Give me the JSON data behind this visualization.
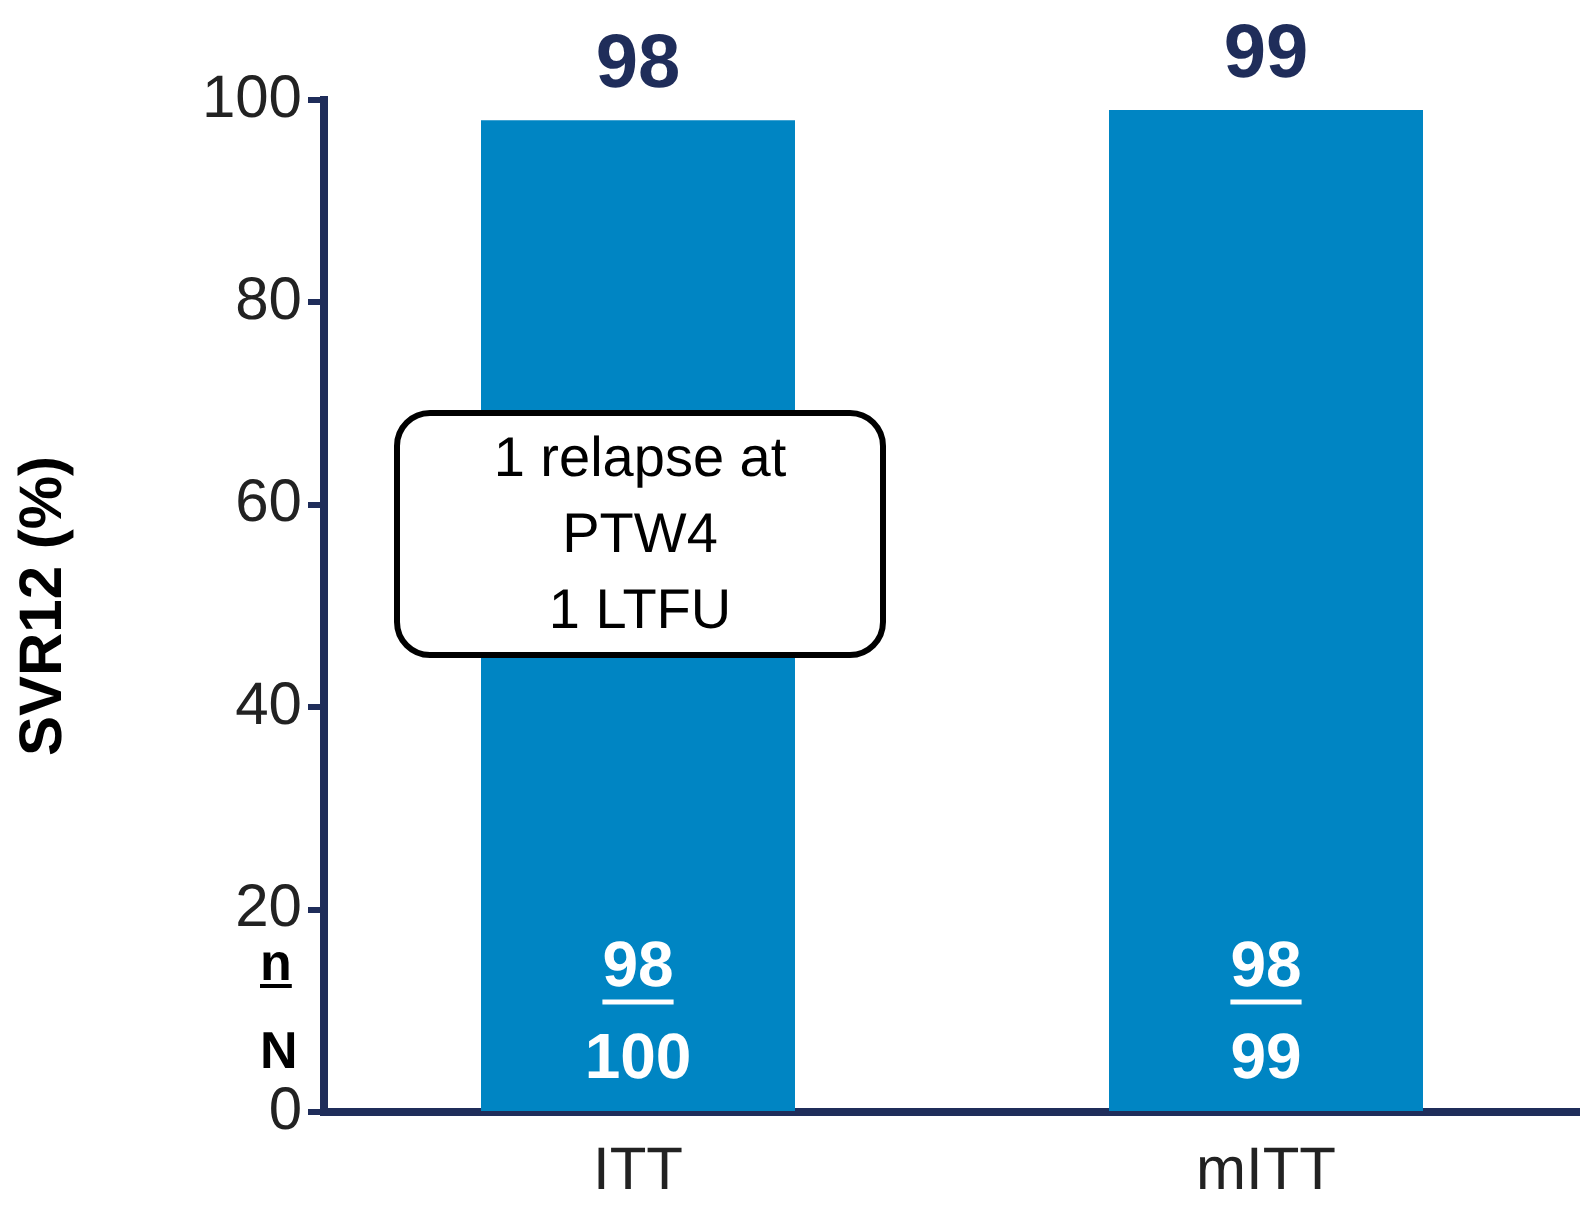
{
  "chart_data": {
    "type": "bar",
    "ylabel": "SVR12 (%)",
    "categories": [
      "ITT",
      "mITT"
    ],
    "values": [
      98,
      99
    ],
    "color": "#0085c3",
    "ylim": [
      0,
      100
    ],
    "yticks": [
      0,
      20,
      40,
      60,
      80,
      100
    ],
    "grid": false,
    "legend": false,
    "data_labels": true,
    "annotations": [
      "1 relapse at\nPTW4\n1 LTFU",
      "n",
      "N",
      "98",
      "100",
      "98",
      "99"
    ]
  }
}
